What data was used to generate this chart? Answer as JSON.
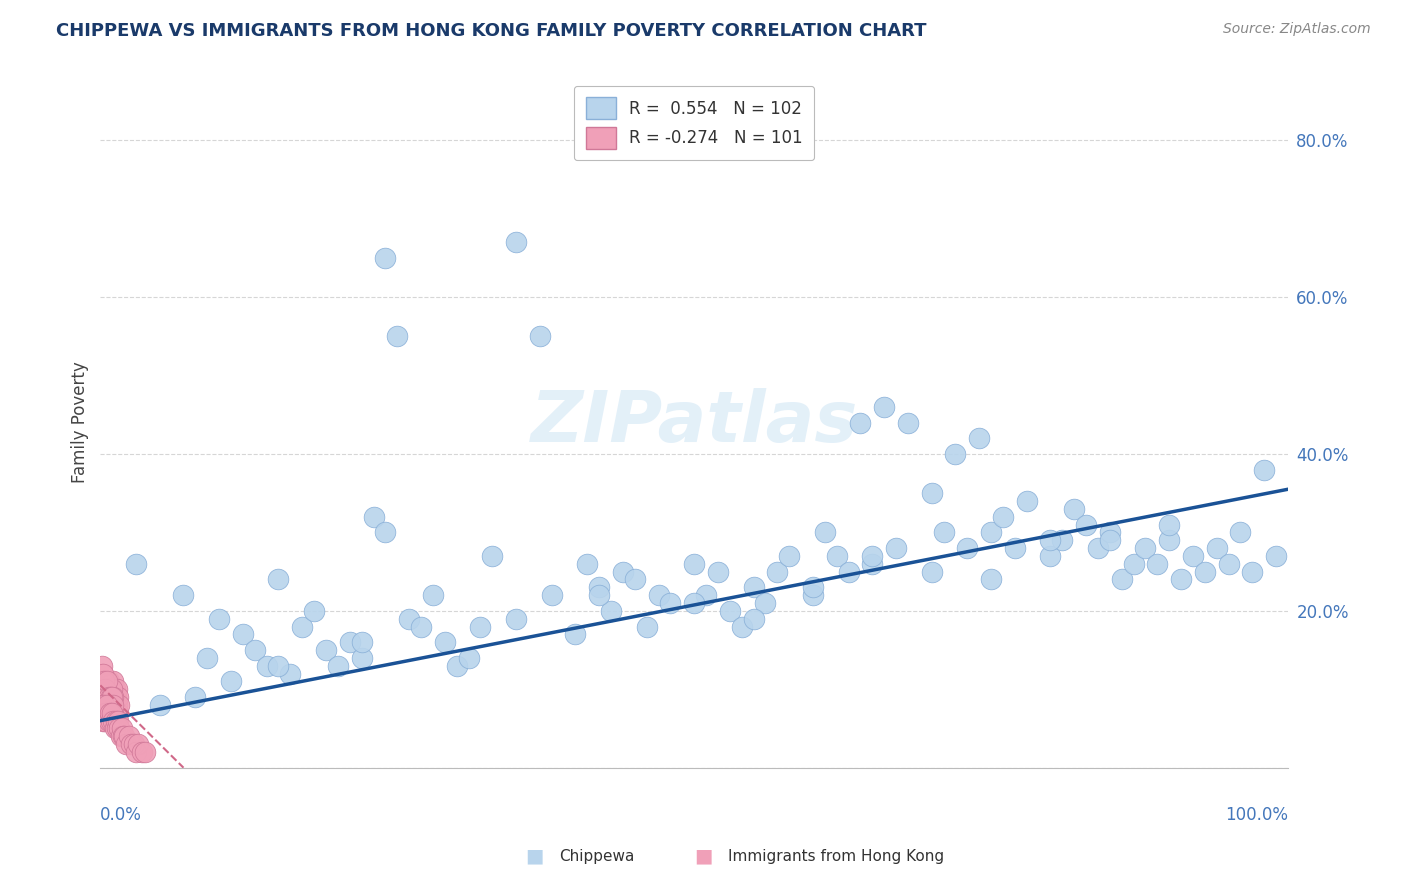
{
  "title": "CHIPPEWA VS IMMIGRANTS FROM HONG KONG FAMILY POVERTY CORRELATION CHART",
  "source": "Source: ZipAtlas.com",
  "ylabel": "Family Poverty",
  "color_blue": "#b8d4ec",
  "color_blue_edge": "#8ab0d8",
  "color_blue_line": "#1a5296",
  "color_pink": "#f0a0b8",
  "color_pink_edge": "#d07898",
  "color_pink_line": "#d06888",
  "color_grid": "#cccccc",
  "background": "#ffffff",
  "blue_intercept": 0.06,
  "blue_slope": 0.295,
  "pink_intercept": 0.105,
  "pink_slope": -1.5,
  "ytick_vals": [
    0.0,
    0.2,
    0.4,
    0.6,
    0.8
  ],
  "ytick_labels": [
    "",
    "20.0%",
    "40.0%",
    "60.0%",
    "80.0%"
  ],
  "legend_entry1": "R =  0.554   N = 102",
  "legend_entry2": "R = -0.274   N = 101",
  "legend_label1": "Chippewa",
  "legend_label2": "Immigrants from Hong Kong",
  "chippewa_x": [
    0.03,
    0.05,
    0.07,
    0.09,
    0.1,
    0.11,
    0.12,
    0.13,
    0.14,
    0.15,
    0.16,
    0.17,
    0.18,
    0.19,
    0.2,
    0.21,
    0.22,
    0.23,
    0.24,
    0.25,
    0.26,
    0.27,
    0.28,
    0.29,
    0.3,
    0.31,
    0.33,
    0.35,
    0.37,
    0.38,
    0.4,
    0.41,
    0.42,
    0.43,
    0.44,
    0.45,
    0.46,
    0.47,
    0.48,
    0.5,
    0.51,
    0.52,
    0.53,
    0.54,
    0.55,
    0.56,
    0.57,
    0.58,
    0.6,
    0.61,
    0.62,
    0.63,
    0.64,
    0.65,
    0.66,
    0.67,
    0.68,
    0.7,
    0.71,
    0.72,
    0.73,
    0.74,
    0.75,
    0.76,
    0.77,
    0.78,
    0.8,
    0.81,
    0.82,
    0.83,
    0.84,
    0.85,
    0.86,
    0.87,
    0.88,
    0.89,
    0.9,
    0.91,
    0.92,
    0.93,
    0.94,
    0.95,
    0.96,
    0.97,
    0.98,
    0.99,
    0.24,
    0.35,
    0.5,
    0.6,
    0.7,
    0.8,
    0.9,
    0.55,
    0.65,
    0.75,
    0.85,
    0.42,
    0.32,
    0.22,
    0.15,
    0.08
  ],
  "chippewa_y": [
    0.26,
    0.08,
    0.22,
    0.14,
    0.19,
    0.11,
    0.17,
    0.15,
    0.13,
    0.24,
    0.12,
    0.18,
    0.2,
    0.15,
    0.13,
    0.16,
    0.14,
    0.32,
    0.3,
    0.55,
    0.19,
    0.18,
    0.22,
    0.16,
    0.13,
    0.14,
    0.27,
    0.19,
    0.55,
    0.22,
    0.17,
    0.26,
    0.23,
    0.2,
    0.25,
    0.24,
    0.18,
    0.22,
    0.21,
    0.26,
    0.22,
    0.25,
    0.2,
    0.18,
    0.23,
    0.21,
    0.25,
    0.27,
    0.22,
    0.3,
    0.27,
    0.25,
    0.44,
    0.26,
    0.46,
    0.28,
    0.44,
    0.25,
    0.3,
    0.4,
    0.28,
    0.42,
    0.3,
    0.32,
    0.28,
    0.34,
    0.27,
    0.29,
    0.33,
    0.31,
    0.28,
    0.3,
    0.24,
    0.26,
    0.28,
    0.26,
    0.29,
    0.24,
    0.27,
    0.25,
    0.28,
    0.26,
    0.3,
    0.25,
    0.38,
    0.27,
    0.65,
    0.67,
    0.21,
    0.23,
    0.35,
    0.29,
    0.31,
    0.19,
    0.27,
    0.24,
    0.29,
    0.22,
    0.18,
    0.16,
    0.13,
    0.09
  ],
  "hk_x": [
    0.001,
    0.002,
    0.002,
    0.003,
    0.003,
    0.004,
    0.004,
    0.005,
    0.005,
    0.006,
    0.006,
    0.007,
    0.007,
    0.008,
    0.008,
    0.009,
    0.009,
    0.01,
    0.01,
    0.011,
    0.011,
    0.012,
    0.012,
    0.013,
    0.013,
    0.014,
    0.014,
    0.015,
    0.015,
    0.016,
    0.001,
    0.002,
    0.003,
    0.003,
    0.004,
    0.004,
    0.005,
    0.005,
    0.006,
    0.006,
    0.007,
    0.007,
    0.008,
    0.008,
    0.009,
    0.009,
    0.01,
    0.01,
    0.011,
    0.011,
    0.001,
    0.001,
    0.002,
    0.002,
    0.003,
    0.003,
    0.004,
    0.004,
    0.005,
    0.005,
    0.006,
    0.006,
    0.007,
    0.007,
    0.008,
    0.009,
    0.009,
    0.01,
    0.01,
    0.011,
    0.001,
    0.001,
    0.002,
    0.002,
    0.003,
    0.004,
    0.004,
    0.005,
    0.006,
    0.007,
    0.008,
    0.009,
    0.01,
    0.011,
    0.012,
    0.013,
    0.014,
    0.015,
    0.016,
    0.017,
    0.018,
    0.019,
    0.02,
    0.022,
    0.024,
    0.026,
    0.028,
    0.03,
    0.032,
    0.035,
    0.038
  ],
  "hk_y": [
    0.09,
    0.1,
    0.08,
    0.11,
    0.09,
    0.1,
    0.08,
    0.11,
    0.09,
    0.1,
    0.08,
    0.09,
    0.11,
    0.08,
    0.1,
    0.09,
    0.07,
    0.1,
    0.08,
    0.09,
    0.11,
    0.08,
    0.1,
    0.09,
    0.07,
    0.1,
    0.08,
    0.09,
    0.07,
    0.08,
    0.12,
    0.11,
    0.1,
    0.09,
    0.08,
    0.1,
    0.09,
    0.11,
    0.08,
    0.1,
    0.09,
    0.07,
    0.08,
    0.1,
    0.09,
    0.07,
    0.08,
    0.1,
    0.07,
    0.09,
    0.13,
    0.11,
    0.12,
    0.1,
    0.09,
    0.11,
    0.08,
    0.1,
    0.09,
    0.08,
    0.11,
    0.07,
    0.09,
    0.08,
    0.07,
    0.09,
    0.08,
    0.07,
    0.09,
    0.08,
    0.07,
    0.08,
    0.06,
    0.07,
    0.08,
    0.07,
    0.06,
    0.07,
    0.08,
    0.06,
    0.07,
    0.06,
    0.07,
    0.06,
    0.05,
    0.06,
    0.05,
    0.06,
    0.05,
    0.04,
    0.05,
    0.04,
    0.04,
    0.03,
    0.04,
    0.03,
    0.03,
    0.02,
    0.03,
    0.02,
    0.02
  ]
}
